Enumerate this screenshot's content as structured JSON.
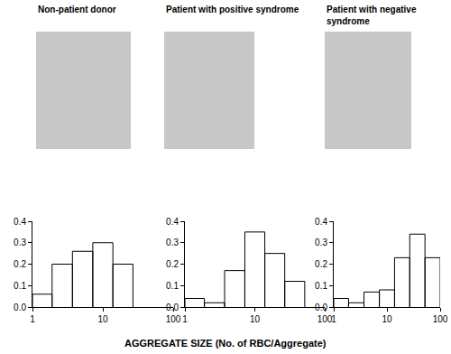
{
  "chart_data": [
    {
      "type": "histogram",
      "title": "Non-patient donor",
      "bins": [
        1,
        1.9,
        3.7,
        7.2,
        13.9,
        26.8
      ],
      "values": [
        0.06,
        0.2,
        0.26,
        0.3,
        0.2
      ],
      "color": "#ffffff",
      "log": "x",
      "xlim": [
        1,
        100
      ],
      "xticks": [
        1,
        10,
        100
      ],
      "ylim": [
        0,
        0.4
      ],
      "yticks": [
        {
          "value": 0,
          "label": "0.0"
        },
        0.1,
        0.2,
        0.3,
        0.4
      ],
      "grid": false
    },
    {
      "type": "histogram",
      "title": "Patient with positive syndrome",
      "bins": [
        1,
        1.9,
        3.7,
        7.2,
        13.9,
        26.8,
        51.8
      ],
      "values": [
        0.04,
        0.02,
        0.17,
        0.35,
        0.25,
        0.12
      ],
      "color": "#ffffff",
      "log": "x",
      "xlim": [
        1,
        100
      ],
      "xticks": [
        1,
        10,
        100
      ],
      "ylim": [
        0,
        0.4
      ],
      "yticks": [
        {
          "value": 0,
          "label": "0.0"
        },
        0.1,
        0.2,
        0.3,
        0.4
      ],
      "grid": false
    },
    {
      "type": "histogram",
      "title": "Patient with negative syndrome",
      "bins": [
        1,
        1.9,
        3.7,
        7.2,
        13.9,
        26.8,
        51.8,
        100
      ],
      "values": [
        0.04,
        0.02,
        0.07,
        0.08,
        0.23,
        0.34,
        0.23
      ],
      "color": "#ffffff",
      "log": "x",
      "xlim": [
        1,
        100
      ],
      "xticks": [
        1,
        10,
        100
      ],
      "ylim": [
        0,
        0.4
      ],
      "yticks": [
        {
          "value": 0,
          "label": "0.0"
        },
        0.1,
        0.2,
        0.3,
        0.4
      ],
      "grid": false
    }
  ],
  "xlabel": "AGGREGATE SIZE (No. of RBC/Aggregate)"
}
